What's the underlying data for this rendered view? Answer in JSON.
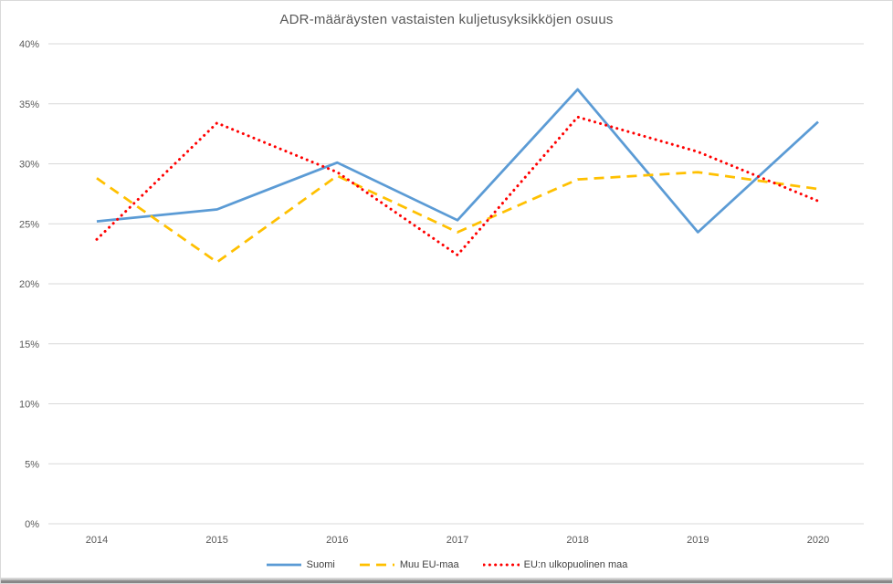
{
  "title": "ADR-määräysten vastaisten kuljetusyksikköjen osuus",
  "colors": {
    "suomi": "#5B9BD5",
    "muu_eu_maa": "#FFC000",
    "eu_ulkopuolinen": "#FF0000",
    "gridline": "#D9D9D9",
    "tick_text": "#595959",
    "title_text": "#595959",
    "bottom_bar": "#8A8A8A"
  },
  "chart_data": {
    "type": "line",
    "title": "ADR-määräysten vastaisten kuljetusyksikköjen osuus",
    "categories": [
      "2014",
      "2015",
      "2016",
      "2017",
      "2018",
      "2019",
      "2020"
    ],
    "series": [
      {
        "name": "Suomi",
        "color": "#5B9BD5",
        "style": "solid",
        "values": [
          25.2,
          26.2,
          30.1,
          25.3,
          36.2,
          24.3,
          33.5
        ]
      },
      {
        "name": "Muu EU-maa",
        "color": "#FFC000",
        "style": "dashed",
        "values": [
          28.8,
          21.8,
          29.0,
          24.3,
          28.7,
          29.3,
          27.9
        ]
      },
      {
        "name": "EU:n ulkopuolinen maa",
        "color": "#FF0000",
        "style": "dotted",
        "values": [
          23.7,
          33.4,
          29.3,
          22.4,
          33.9,
          31.0,
          26.9
        ]
      }
    ],
    "xlabel": "",
    "ylabel": "",
    "ylim": [
      0,
      40
    ],
    "ytick_step": 5,
    "ytick_format": "percent",
    "grid": true,
    "legend_position": "bottom"
  }
}
